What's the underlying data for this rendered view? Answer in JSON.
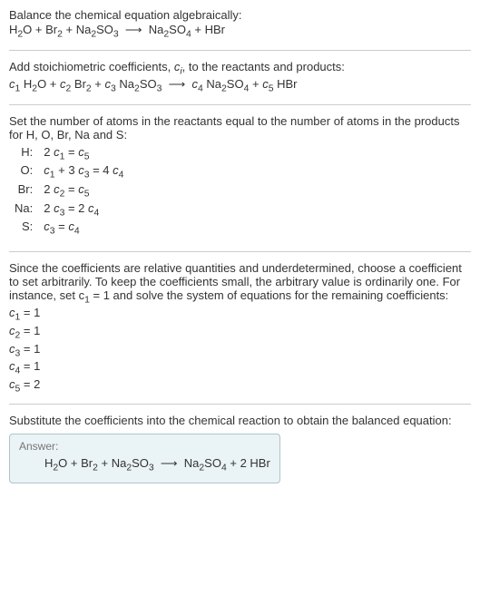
{
  "s1": {
    "intro": "Balance the chemical equation algebraically:",
    "eq_pre": "H",
    "eq": "O + Br",
    "arrow": " ⟶ "
  },
  "s2": {
    "intro_a": "Add stoichiometric coefficients, ",
    "intro_b": ", to the reactants and products:"
  },
  "s3": {
    "intro": "Set the number of atoms in the reactants equal to the number of atoms in the products for H, O, Br, Na and S:",
    "rows": [
      {
        "el": "H:",
        "eq_a": "2 c",
        "eq_b": " = c"
      },
      {
        "el": "O:",
        "eq_a": "c",
        "eq_b": " + 3 c",
        "eq_c": " = 4 c"
      },
      {
        "el": "Br:",
        "eq_a": "2 c",
        "eq_b": " = c"
      },
      {
        "el": "Na:",
        "eq_a": "2 c",
        "eq_b": " = 2 c"
      },
      {
        "el": "S:",
        "eq_a": "c",
        "eq_b": " = c"
      }
    ]
  },
  "s4": {
    "intro_a": "Since the coefficients are relative quantities and underdetermined, choose a coefficient to set arbitrarily. To keep the coefficients small, the arbitrary value is ordinarily one. For instance, set c",
    "intro_b": " = 1 and solve the system of equations for the remaining coefficients:",
    "c1": "c",
    "v1": " = 1",
    "c2": "c",
    "v2": " = 1",
    "c3": "c",
    "v3": " = 1",
    "c4": "c",
    "v4": " = 1",
    "c5": "c",
    "v5": " = 2"
  },
  "s5": {
    "intro": "Substitute the coefficients into the chemical reaction to obtain the balanced equation:",
    "ans_title": "Answer:"
  },
  "sub": {
    "1": "1",
    "2": "2",
    "3": "3",
    "4": "4",
    "5": "5",
    "i": "i"
  },
  "txt": {
    "H2O": "H",
    "O": "O",
    "Br": "Br",
    "Na": "Na",
    "SO": "SO",
    "plus": " + ",
    "arrow": " ⟶ ",
    "HBr": " HBr",
    "Na2SO3": "Na",
    "Na2SO4": "Na",
    "space": " ",
    "c": "c"
  }
}
